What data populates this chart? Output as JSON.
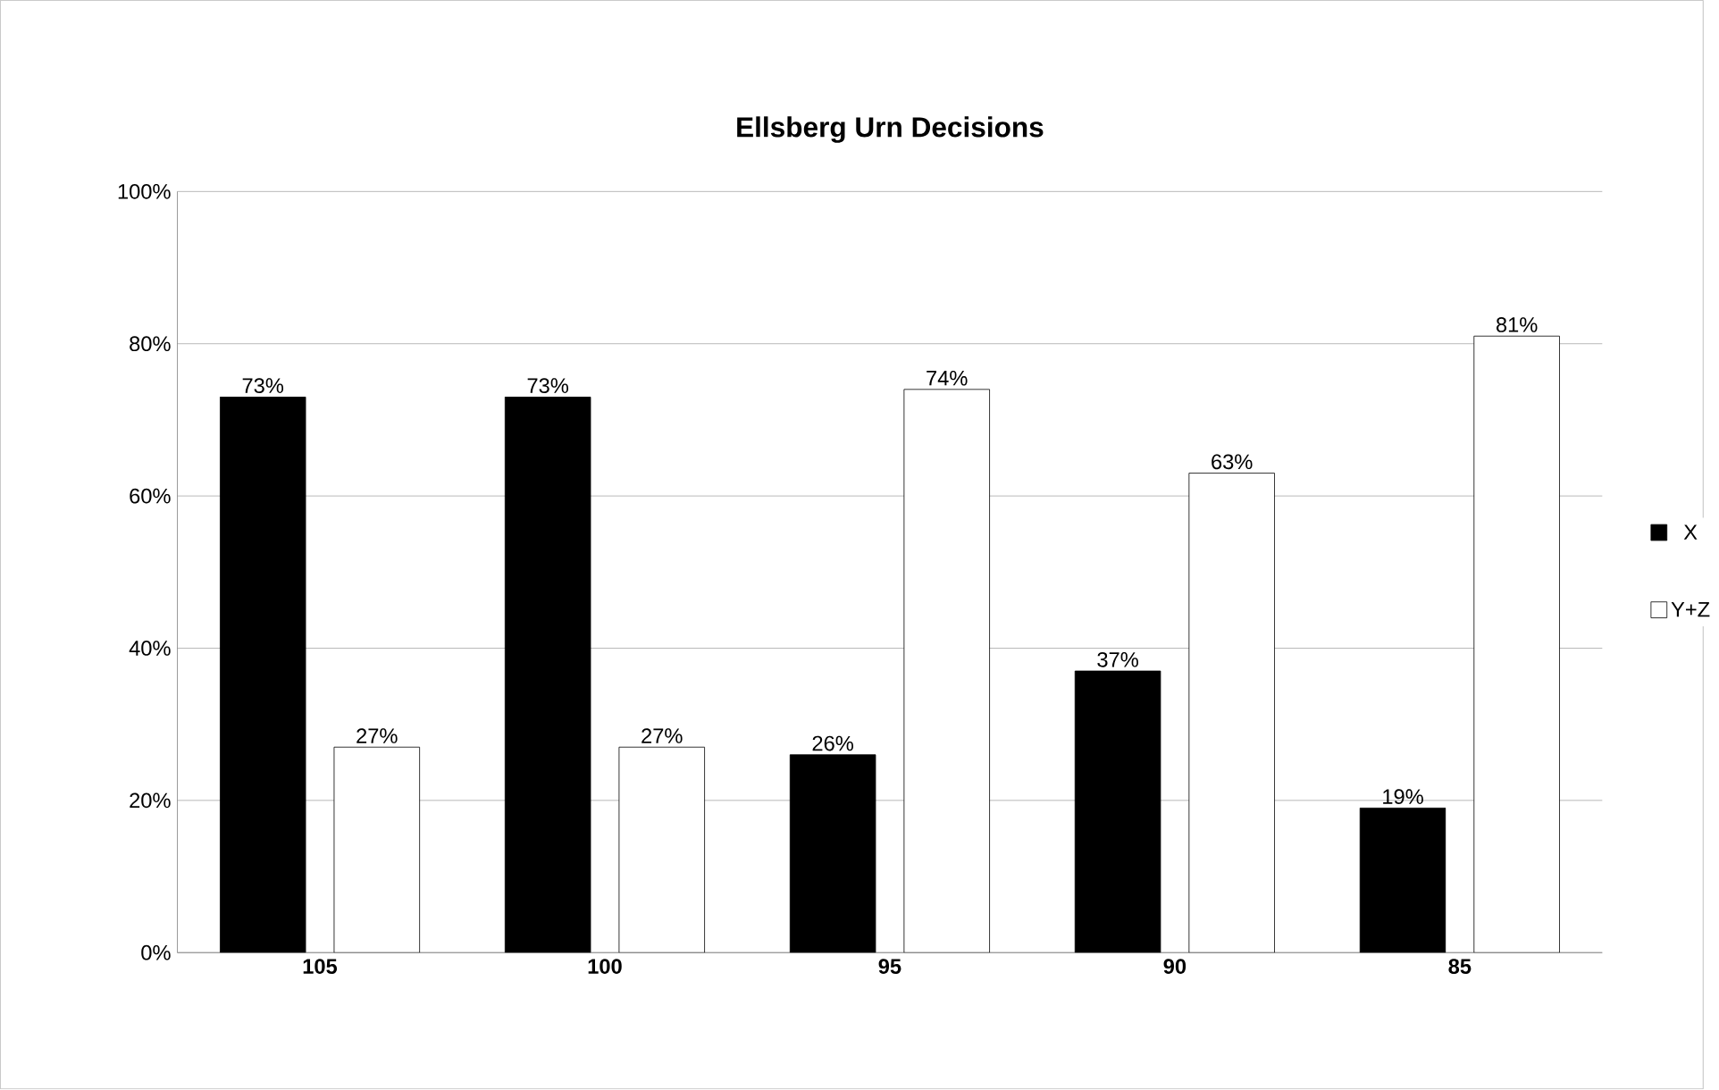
{
  "chart_data": {
    "type": "bar",
    "title": "Ellsberg Urn Decisions",
    "categories": [
      "105",
      "100",
      "95",
      "90",
      "85"
    ],
    "series": [
      {
        "name": "X",
        "color": "#000000",
        "values": [
          73,
          73,
          26,
          37,
          19
        ],
        "value_labels": [
          "73%",
          "73%",
          "26%",
          "37%",
          "19%"
        ]
      },
      {
        "name": "Y+Z",
        "color": "#ffffff",
        "values": [
          27,
          27,
          74,
          63,
          81
        ],
        "value_labels": [
          "27%",
          "27%",
          "74%",
          "63%",
          "81%"
        ]
      }
    ],
    "ylim": [
      0,
      100
    ],
    "yticks": [
      {
        "value": 0,
        "label": "0%"
      },
      {
        "value": 20,
        "label": "20%"
      },
      {
        "value": 40,
        "label": "40%"
      },
      {
        "value": 60,
        "label": "60%"
      },
      {
        "value": 80,
        "label": "80%"
      },
      {
        "value": 100,
        "label": "100%"
      }
    ],
    "grid": "y",
    "legend": "right"
  }
}
